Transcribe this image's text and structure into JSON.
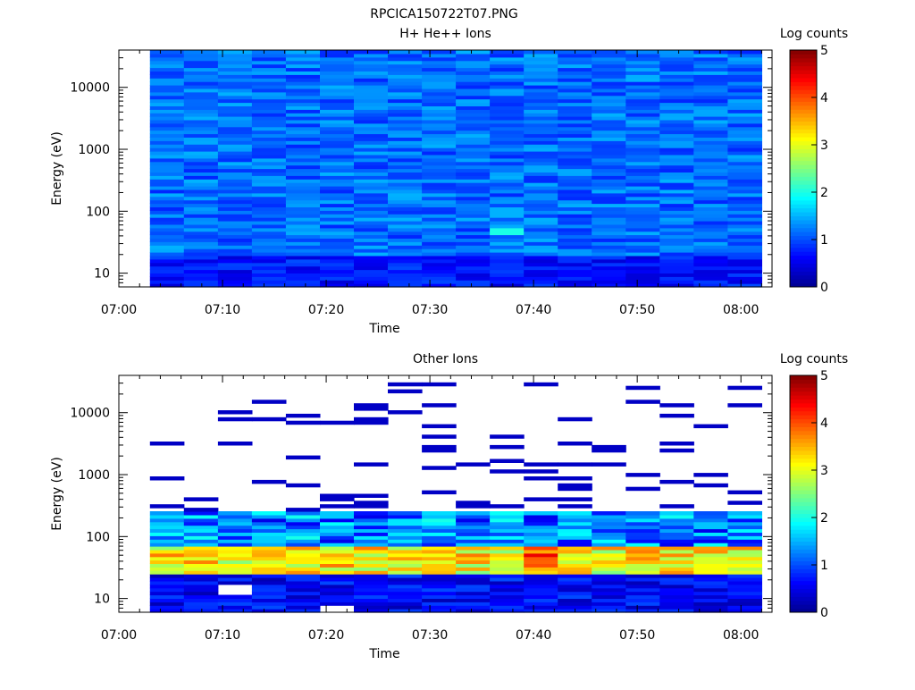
{
  "page": {
    "title": "RPCICA150722T07.PNG"
  },
  "colors": {
    "background": "#ffffff",
    "axes": "#000000",
    "colormap": [
      "#00008f",
      "#0000ff",
      "#0080ff",
      "#00ffff",
      "#80ff80",
      "#ffff00",
      "#ff8000",
      "#ff0000",
      "#800000"
    ]
  },
  "chart_data": [
    {
      "type": "heatmap",
      "title": "H+ He++ Ions",
      "xlabel": "Time",
      "ylabel": "Energy (eV)",
      "x_ticks": [
        "07:00",
        "07:10",
        "07:20",
        "07:30",
        "07:40",
        "07:50",
        "08:00"
      ],
      "xlim": [
        "07:00",
        "08:03"
      ],
      "y_scale": "log",
      "y_ticks": [
        "10",
        "100",
        "1000",
        "10000"
      ],
      "ylim": [
        6,
        40000
      ],
      "data_time_range": [
        "07:03",
        "08:00"
      ],
      "colorbar": {
        "label": "Log counts",
        "range": [
          0,
          5
        ],
        "ticks": [
          "0",
          "1",
          "2",
          "3",
          "4",
          "5"
        ]
      },
      "levels_summary": [
        {
          "energy_range_eV": [
            6,
            40000
          ],
          "log_counts": "0.8-1.5 (background level)"
        },
        {
          "energy_range_eV": [
            40,
            55
          ],
          "time_range": [
            "07:35",
            "07:38"
          ],
          "log_counts": 2.0
        }
      ],
      "grid": false
    },
    {
      "type": "heatmap",
      "title": "Other Ions",
      "xlabel": "Time",
      "ylabel": "Energy (eV)",
      "x_ticks": [
        "07:00",
        "07:10",
        "07:20",
        "07:30",
        "07:40",
        "07:50",
        "08:00"
      ],
      "xlim": [
        "07:00",
        "08:03"
      ],
      "y_scale": "log",
      "y_ticks": [
        "10",
        "100",
        "1000",
        "10000"
      ],
      "ylim": [
        6,
        40000
      ],
      "data_time_range": [
        "07:03",
        "08:00"
      ],
      "colorbar": {
        "label": "Log counts",
        "range": [
          0,
          5
        ],
        "ticks": [
          "0",
          "1",
          "2",
          "3",
          "4",
          "5"
        ]
      },
      "levels_summary": [
        {
          "energy_range_eV": [
            6,
            25
          ],
          "log_counts": "0.2-1.0"
        },
        {
          "energy_range_eV": [
            25,
            70
          ],
          "log_counts": "2.5-3.8 (peak ~4.2 near 07:35-07:38)"
        },
        {
          "energy_range_eV": [
            70,
            250
          ],
          "log_counts": "0.5-2.0"
        },
        {
          "energy_range_eV": [
            250,
            40000
          ],
          "log_counts": "sparse, ~0.3"
        }
      ],
      "grid": false
    }
  ]
}
